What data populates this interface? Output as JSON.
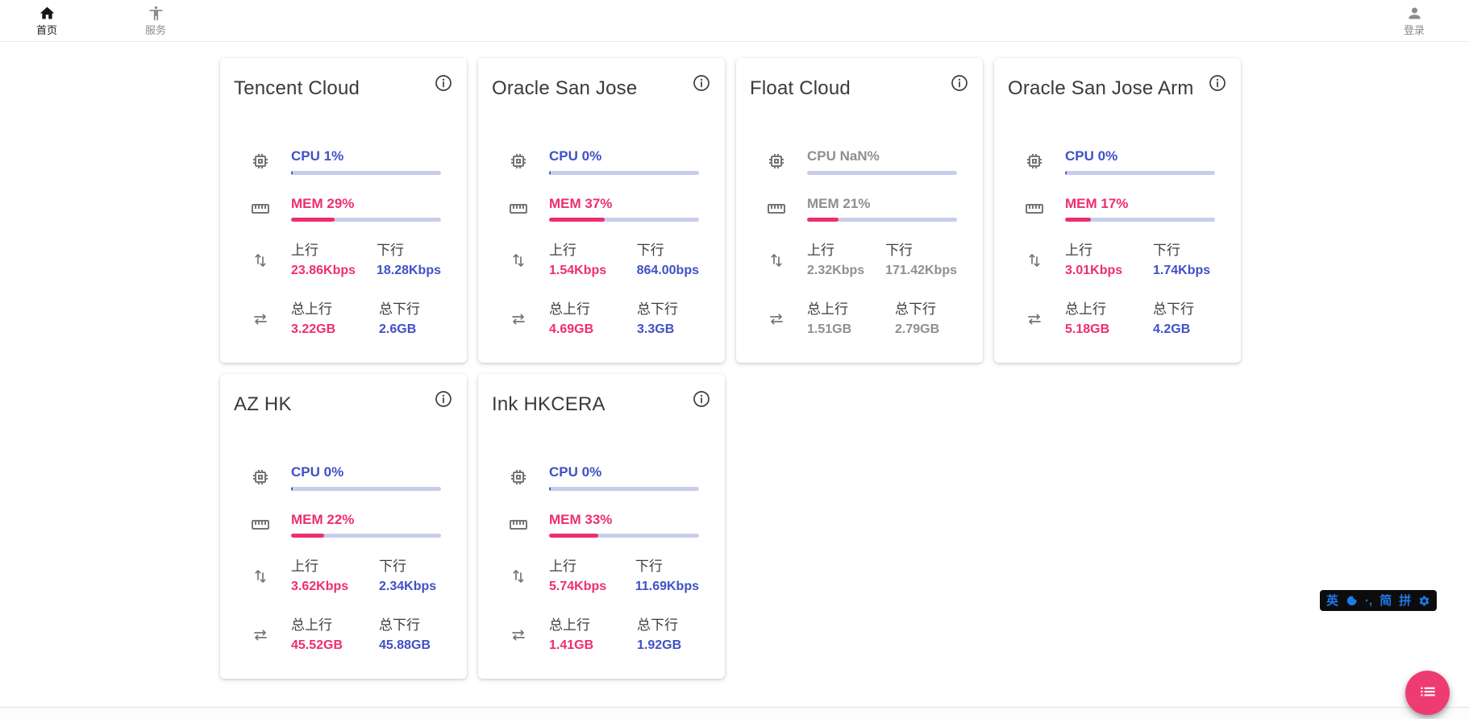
{
  "nav": {
    "home_label": "首页",
    "services_label": "服务",
    "login_label": "登录"
  },
  "labels": {
    "up": "上行",
    "down": "下行",
    "total_up": "总上行",
    "total_down": "总下行"
  },
  "cards": [
    {
      "title": "Tencent Cloud",
      "cpu_text": "CPU 1%",
      "cpu_pct": 1,
      "mem_text": "MEM 29%",
      "mem_pct": 29,
      "up_value": "23.86Kbps",
      "down_value": "18.28Kbps",
      "total_up_value": "3.22GB",
      "total_down_value": "2.6GB"
    },
    {
      "title": "Oracle San Jose",
      "cpu_text": "CPU 0%",
      "cpu_pct": 0,
      "mem_text": "MEM 37%",
      "mem_pct": 37,
      "up_value": "1.54Kbps",
      "down_value": "864.00bps",
      "total_up_value": "4.69GB",
      "total_down_value": "3.3GB"
    },
    {
      "title": "Float Cloud",
      "cpu_text": "CPU NaN%",
      "cpu_pct": null,
      "mem_text": "MEM 21%",
      "mem_pct": 21,
      "up_value": "2.32Kbps",
      "down_value": "171.42Kbps",
      "total_up_value": "1.51GB",
      "total_down_value": "2.79GB",
      "state": "offline"
    },
    {
      "title": "Oracle San Jose Arm",
      "cpu_text": "CPU 0%",
      "cpu_pct": 0,
      "mem_text": "MEM 17%",
      "mem_pct": 17,
      "up_value": "3.01Kbps",
      "down_value": "1.74Kbps",
      "total_up_value": "5.18GB",
      "total_down_value": "4.2GB"
    },
    {
      "title": "AZ HK",
      "cpu_text": "CPU 0%",
      "cpu_pct": 0,
      "mem_text": "MEM 22%",
      "mem_pct": 22,
      "up_value": "3.62Kbps",
      "down_value": "2.34Kbps",
      "total_up_value": "45.52GB",
      "total_down_value": "45.88GB"
    },
    {
      "title": "Ink HKCERA",
      "cpu_text": "CPU 0%",
      "cpu_pct": 0,
      "mem_text": "MEM 33%",
      "mem_pct": 33,
      "up_value": "5.74Kbps",
      "down_value": "11.69Kbps",
      "total_up_value": "1.41GB",
      "total_down_value": "1.92GB"
    }
  ],
  "ime_bar": {
    "lang": "英",
    "punct": "·,",
    "simplified": "简",
    "scheme": "拼"
  },
  "colors": {
    "accent_pink": "#ee2e6e",
    "accent_blue": "#3f51c5",
    "bar_track": "#c9cdec",
    "muted_text": "#8f8f8f",
    "ime_blue": "#2079e8",
    "fab_pink": "#ee3b72"
  }
}
